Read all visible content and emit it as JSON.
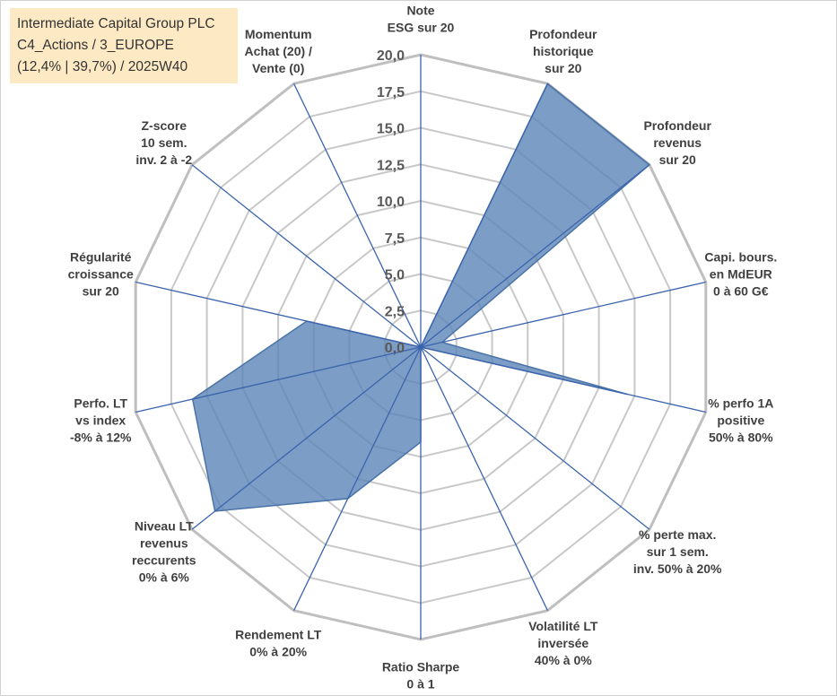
{
  "header": {
    "company": "Intermediate Capital Group PLC",
    "category": "C4_Actions / 3_EUROPE",
    "stats": "(12,4% | 39,7%) / 2025W40"
  },
  "colors": {
    "fill": "#5b84b8",
    "stroke": "#4a73a8",
    "spokes": "#3b64ad",
    "grid": "#c8c8c8",
    "ring": "#bfbfbf"
  },
  "chart_data": {
    "type": "radar",
    "title": "",
    "rmin": 0,
    "rmax": 20,
    "ticks": [
      "0,0",
      "2,5",
      "5,0",
      "7,5",
      "10,0",
      "12,5",
      "15,0",
      "17,5",
      "20,0"
    ],
    "axes": [
      {
        "label": [
          "Note",
          "ESG sur 20"
        ],
        "value": 0
      },
      {
        "label": [
          "Profondeur",
          "historique",
          "sur 20"
        ],
        "value": 20
      },
      {
        "label": [
          "Profondeur",
          "revenus",
          "sur 20"
        ],
        "value": 20
      },
      {
        "label": [
          "Capi. bours.",
          "en MdEUR",
          "0 à 60 G€"
        ],
        "value": 1.5
      },
      {
        "label": [
          "% perfo 1A",
          "positive",
          "50% à 80%"
        ],
        "value": 14.5
      },
      {
        "label": [
          "% perte max.",
          "sur 1 sem.",
          "inv. 50% à 20%"
        ],
        "value": 0
      },
      {
        "label": [
          "Volatilité LT",
          "inversée",
          "40% à 0%"
        ],
        "value": 0
      },
      {
        "label": [
          "Ratio Sharpe",
          "0 à 1"
        ],
        "value": 6.5
      },
      {
        "label": [
          "Rendement LT",
          "0% à 20%"
        ],
        "value": 11.5
      },
      {
        "label": [
          "Niveau LT",
          "revenus",
          "reccurents",
          "0% à 6%"
        ],
        "value": 18
      },
      {
        "label": [
          "Perfo. LT",
          "vs index",
          "-8% à 12%"
        ],
        "value": 16
      },
      {
        "label": [
          "Régularité",
          "croissance",
          "sur 20"
        ],
        "value": 8
      },
      {
        "label": [
          "Z-score",
          "10 sem.",
          "inv. 2 à -2"
        ],
        "value": 0
      },
      {
        "label": [
          "Momentum",
          "Achat (20) /",
          "Vente (0)"
        ],
        "value": 0
      }
    ]
  }
}
